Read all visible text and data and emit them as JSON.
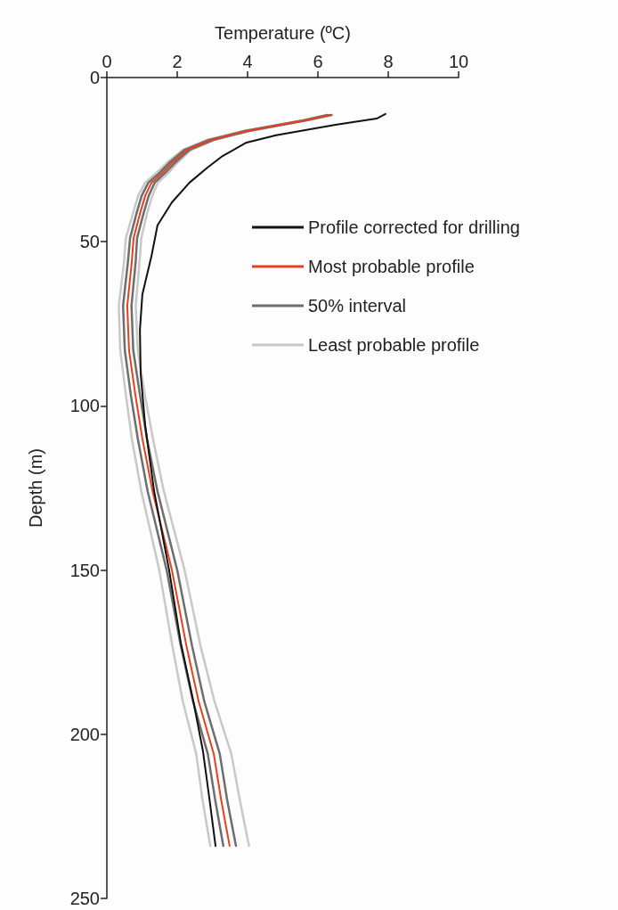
{
  "chart_data": {
    "type": "line",
    "xlabel": "Temperature (ºC)",
    "ylabel": "Depth (m)",
    "xlim": [
      0,
      10
    ],
    "xticks": [
      0,
      2,
      4,
      6,
      8,
      10
    ],
    "ylim": [
      250,
      0
    ],
    "yticks": [
      0,
      50,
      100,
      150,
      200,
      250
    ],
    "legend": "right",
    "marker": "none",
    "line_style": "solid",
    "series": [
      {
        "name": "Least probable profile",
        "color": "#c8c8c8",
        "x": [
          6.25,
          5.57,
          3.88,
          2.86,
          2.16,
          1.7,
          1.43,
          1.09,
          0.89,
          0.74,
          0.54,
          0.49,
          0.34,
          0.38,
          0.54,
          0.71,
          0.98,
          1.49,
          1.86,
          2.16,
          2.54,
          2.72,
          2.94
        ],
        "values": [
          11.4,
          13,
          16.3,
          19,
          22,
          26,
          28.8,
          32,
          36,
          41.5,
          48.9,
          56,
          69.5,
          83,
          96.6,
          110,
          126,
          150,
          173,
          190,
          206,
          220,
          234
        ]
      },
      {
        "name": null,
        "color": "#c8c8c8",
        "x": [
          6.41,
          5.73,
          4.06,
          3.06,
          2.4,
          2.0,
          1.77,
          1.45,
          1.29,
          1.14,
          0.98,
          0.93,
          0.82,
          0.88,
          1.08,
          1.31,
          1.62,
          2.21,
          2.66,
          3.06,
          3.54,
          3.78,
          4.04
        ],
        "values": [
          11.4,
          13,
          16.3,
          19,
          22,
          26,
          28.8,
          32,
          36,
          41.5,
          48.9,
          56,
          69.5,
          83,
          96.6,
          110,
          126,
          150,
          173,
          190,
          206,
          220,
          234
        ]
      },
      {
        "name": "50% interval",
        "color": "#6e6e6e",
        "x": [
          6.28,
          5.6,
          3.92,
          2.9,
          2.21,
          1.77,
          1.52,
          1.18,
          0.99,
          0.84,
          0.66,
          0.6,
          0.46,
          0.51,
          0.68,
          0.88,
          1.16,
          1.7,
          2.1,
          2.45,
          2.87,
          3.08,
          3.31
        ],
        "values": [
          11.4,
          13,
          16.3,
          19,
          22,
          26,
          28.8,
          32,
          36,
          41.5,
          48.9,
          56,
          69.5,
          83,
          96.6,
          110,
          126,
          150,
          173,
          190,
          206,
          220,
          234
        ]
      },
      {
        "name": null,
        "color": "#6e6e6e",
        "x": [
          6.38,
          5.7,
          4.02,
          3.02,
          2.35,
          1.93,
          1.68,
          1.36,
          1.19,
          1.04,
          0.86,
          0.82,
          0.7,
          0.75,
          0.94,
          1.14,
          1.44,
          2.0,
          2.42,
          2.77,
          3.21,
          3.42,
          3.67
        ],
        "values": [
          11.4,
          13,
          16.3,
          19,
          22,
          26,
          28.8,
          32,
          36,
          41.5,
          48.9,
          56,
          69.5,
          83,
          96.6,
          110,
          126,
          150,
          173,
          190,
          206,
          220,
          234
        ]
      },
      {
        "name": "Most probable profile",
        "color": "#e8401c",
        "x": [
          6.33,
          5.65,
          3.97,
          2.96,
          2.28,
          1.85,
          1.6,
          1.27,
          1.09,
          0.94,
          0.76,
          0.71,
          0.58,
          0.63,
          0.81,
          1.01,
          1.3,
          1.85,
          2.26,
          2.61,
          3.04,
          3.25,
          3.49
        ],
        "values": [
          11.4,
          13,
          16.3,
          19,
          22,
          26,
          28.8,
          32,
          36,
          41.5,
          48.9,
          56,
          69.5,
          83,
          96.6,
          110,
          126,
          150,
          173,
          190,
          206,
          220,
          234
        ]
      },
      {
        "name": "Profile corrected for drilling",
        "color": "#111111",
        "x": [
          7.92,
          7.67,
          6.5,
          4.81,
          3.97,
          3.29,
          2.86,
          2.35,
          1.85,
          1.44,
          1.27,
          1.01,
          0.94,
          0.96,
          1.09,
          1.34,
          1.77,
          2.1,
          2.46,
          2.73,
          2.92,
          3.09
        ],
        "values": [
          11.1,
          12.5,
          14.4,
          17.6,
          19.8,
          23.9,
          27.4,
          32,
          38,
          45,
          54.3,
          66,
          76.8,
          90,
          106,
          125.7,
          150,
          172,
          190,
          205,
          220,
          234
        ]
      }
    ]
  }
}
